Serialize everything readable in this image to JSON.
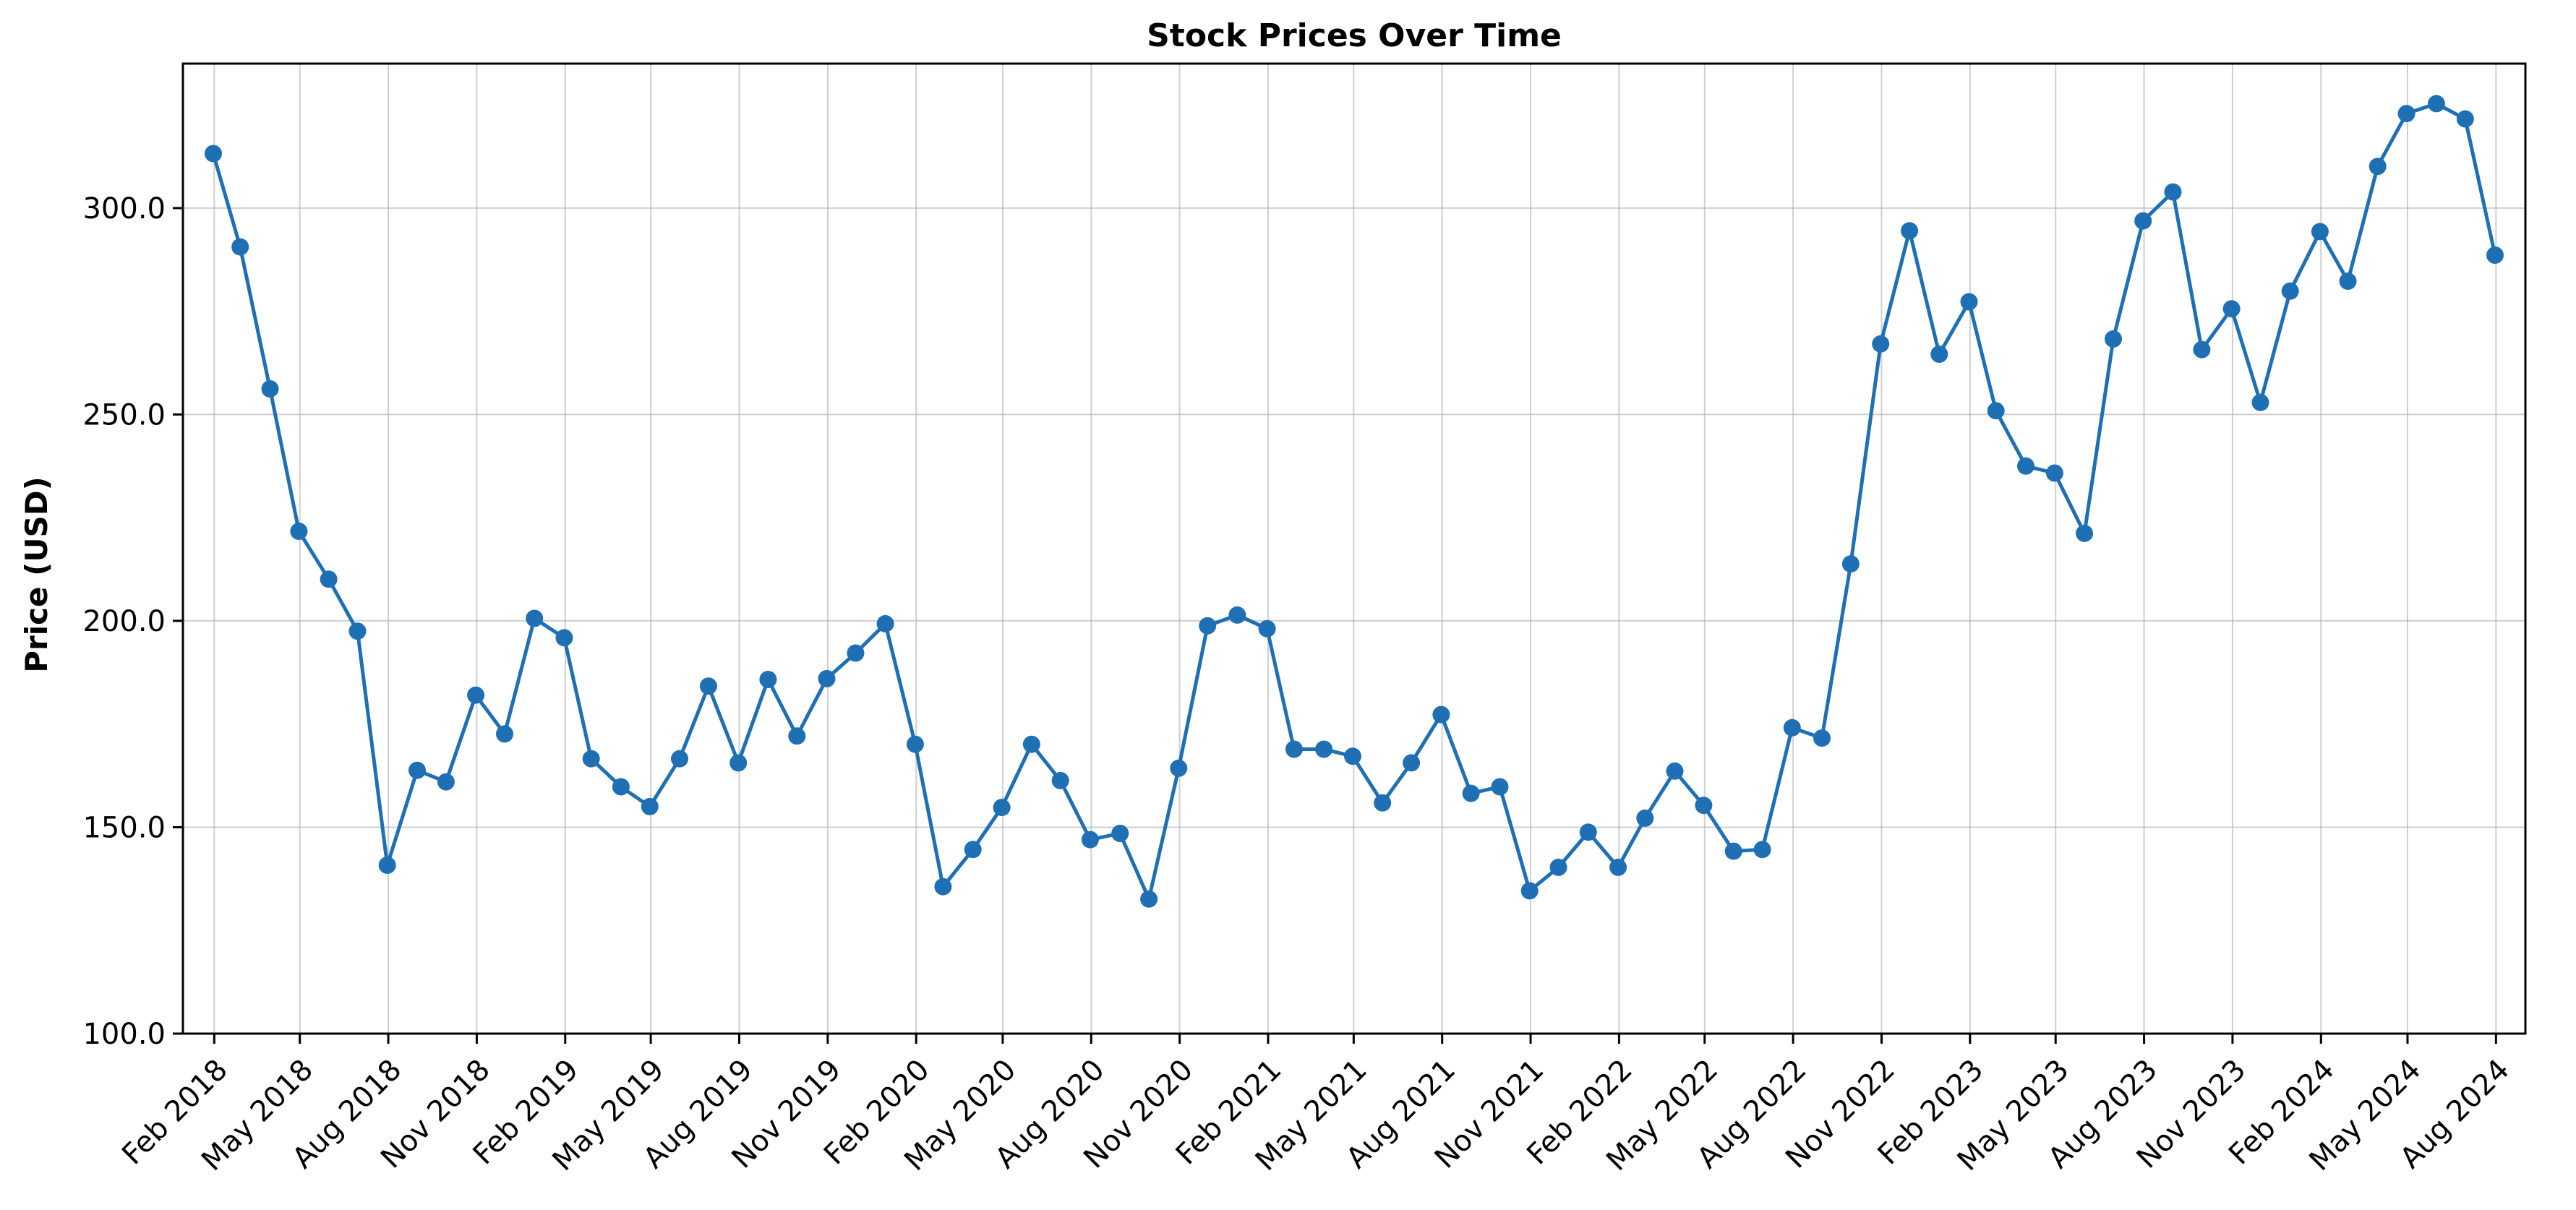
{
  "chart_data": {
    "type": "line",
    "title": "Stock Prices Over Time",
    "xlabel": "",
    "ylabel": "Price (USD)",
    "ylim": [
      100,
      335
    ],
    "yticks": [
      100,
      150,
      200,
      250,
      300
    ],
    "ytick_labels": [
      "100.0",
      "150.0",
      "200.0",
      "250.0",
      "300.0"
    ],
    "grid": true,
    "colors": {
      "series": "#1f6fb4"
    },
    "xticks": [
      "2018-02",
      "2018-05",
      "2018-08",
      "2018-11",
      "2019-02",
      "2019-05",
      "2019-08",
      "2019-11",
      "2020-02",
      "2020-05",
      "2020-08",
      "2020-11",
      "2021-02",
      "2021-05",
      "2021-08",
      "2021-11",
      "2022-02",
      "2022-05",
      "2022-08",
      "2022-11",
      "2023-02",
      "2023-05",
      "2023-08",
      "2023-11",
      "2024-02",
      "2024-05",
      "2024-08"
    ],
    "xtick_labels": [
      "Feb 2018",
      "May 2018",
      "Aug 2018",
      "Nov 2018",
      "Feb 2019",
      "May 2019",
      "Aug 2019",
      "Nov 2019",
      "Feb 2020",
      "May 2020",
      "Aug 2020",
      "Nov 2020",
      "Feb 2021",
      "May 2021",
      "Aug 2021",
      "Nov 2021",
      "Feb 2022",
      "May 2022",
      "Aug 2022",
      "Nov 2022",
      "Feb 2023",
      "May 2023",
      "Aug 2023",
      "Nov 2023",
      "Feb 2024",
      "May 2024",
      "Aug 2024"
    ],
    "x": [
      "2018-01-31",
      "2018-02-28",
      "2018-03-31",
      "2018-04-30",
      "2018-05-31",
      "2018-06-30",
      "2018-07-31",
      "2018-08-31",
      "2018-09-30",
      "2018-10-31",
      "2018-11-30",
      "2018-12-31",
      "2019-01-31",
      "2019-02-28",
      "2019-03-31",
      "2019-04-30",
      "2019-05-31",
      "2019-06-30",
      "2019-07-31",
      "2019-08-31",
      "2019-09-30",
      "2019-10-31",
      "2019-11-30",
      "2019-12-31",
      "2020-01-31",
      "2020-02-29",
      "2020-03-31",
      "2020-04-30",
      "2020-05-31",
      "2020-06-30",
      "2020-07-31",
      "2020-08-31",
      "2020-09-30",
      "2020-10-31",
      "2020-11-30",
      "2020-12-31",
      "2021-01-31",
      "2021-02-28",
      "2021-03-31",
      "2021-04-30",
      "2021-05-31",
      "2021-06-30",
      "2021-07-31",
      "2021-08-31",
      "2021-09-30",
      "2021-10-31",
      "2021-11-30",
      "2021-12-31",
      "2022-01-31",
      "2022-02-28",
      "2022-03-31",
      "2022-04-30",
      "2022-05-31",
      "2022-06-30",
      "2022-07-31",
      "2022-08-31",
      "2022-09-30",
      "2022-10-31",
      "2022-11-30",
      "2022-12-31",
      "2023-01-31",
      "2023-02-28",
      "2023-03-31",
      "2023-04-30",
      "2023-05-31",
      "2023-06-30",
      "2023-07-31",
      "2023-08-31",
      "2023-09-30",
      "2023-10-31",
      "2023-11-30",
      "2023-12-31",
      "2024-01-31",
      "2024-02-29",
      "2024-03-31",
      "2024-04-30",
      "2024-05-31",
      "2024-06-30",
      "2024-07-31"
    ],
    "series": [
      {
        "values": [
          313.2,
          290.6,
          256.2,
          221.7,
          210.1,
          197.5,
          140.8,
          163.8,
          161.0,
          182.0,
          172.6,
          200.6,
          195.9,
          166.6,
          159.8,
          155.0,
          166.6,
          184.2,
          165.6,
          185.8,
          172.1,
          186.0,
          192.2,
          199.3,
          170.1,
          135.6,
          144.6,
          154.8,
          170.1,
          161.3,
          147.0,
          148.5,
          132.6,
          164.3,
          198.8,
          201.4,
          198.1,
          168.9,
          168.9,
          167.2,
          155.9,
          165.6,
          177.3,
          158.2,
          159.8,
          134.6,
          140.3,
          148.8,
          140.3,
          152.2,
          163.6,
          155.3,
          144.2,
          144.6,
          174.1,
          171.6,
          213.8,
          267.1,
          294.5,
          264.6,
          277.3,
          250.9,
          237.5,
          235.8,
          221.2,
          268.3,
          296.9,
          303.9,
          265.7,
          275.6,
          252.9,
          279.9,
          294.3,
          282.3,
          310.1,
          322.9,
          325.3,
          321.6,
          288.6
        ]
      }
    ]
  }
}
